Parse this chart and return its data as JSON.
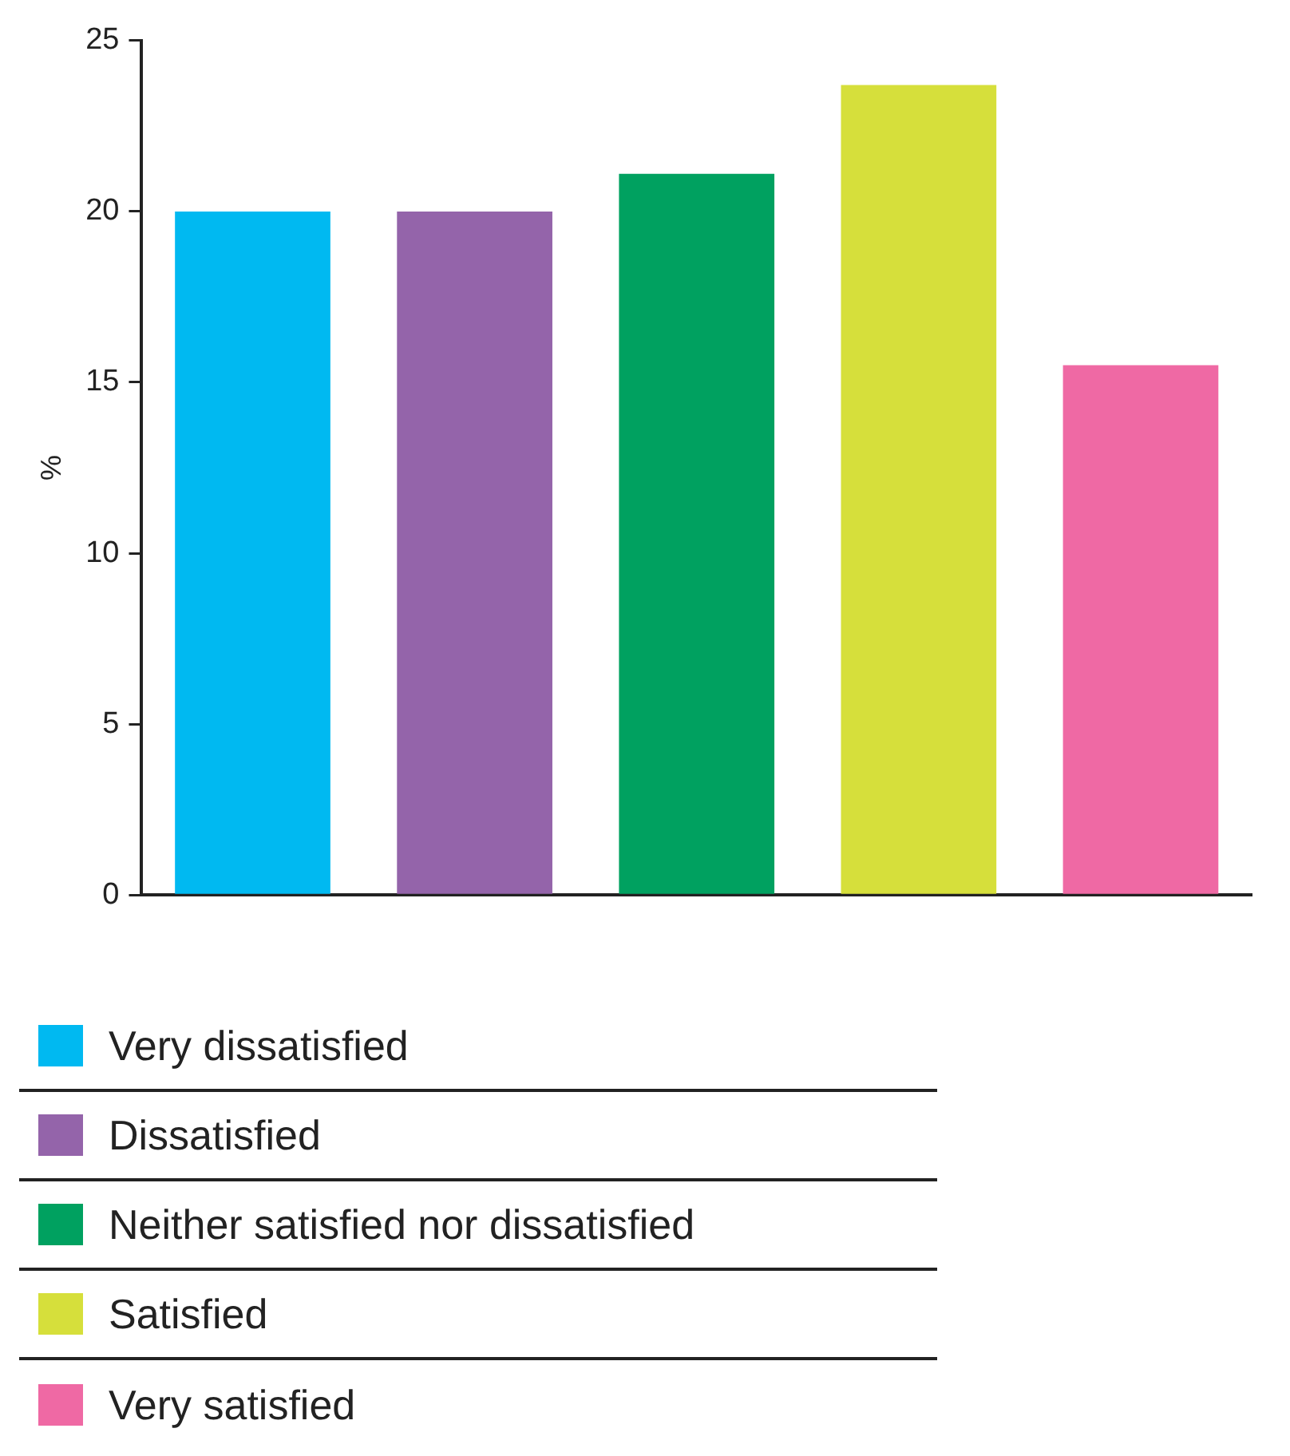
{
  "chart_data": {
    "type": "bar",
    "ylabel": "%",
    "categories": [
      null
    ],
    "series": [
      {
        "name": "Very dissatisfied",
        "color": "#00b9f1",
        "values": [
          20
        ]
      },
      {
        "name": "Dissatisfied",
        "color": "#9464aa",
        "values": [
          20
        ]
      },
      {
        "name": "Neither satisfied nor dissatisfied",
        "color": "#00a160",
        "values": [
          21.1
        ]
      },
      {
        "name": "Satisfied",
        "color": "#d6df3b",
        "values": [
          23.7
        ]
      },
      {
        "name": "Very satisfied",
        "color": "#ef69a4",
        "values": [
          15.5
        ]
      }
    ],
    "ylim": [
      0,
      25
    ],
    "yticks": [
      0,
      5,
      10,
      15,
      20,
      25
    ],
    "grid": false,
    "legend": "bottom",
    "tick_labels": "y"
  }
}
